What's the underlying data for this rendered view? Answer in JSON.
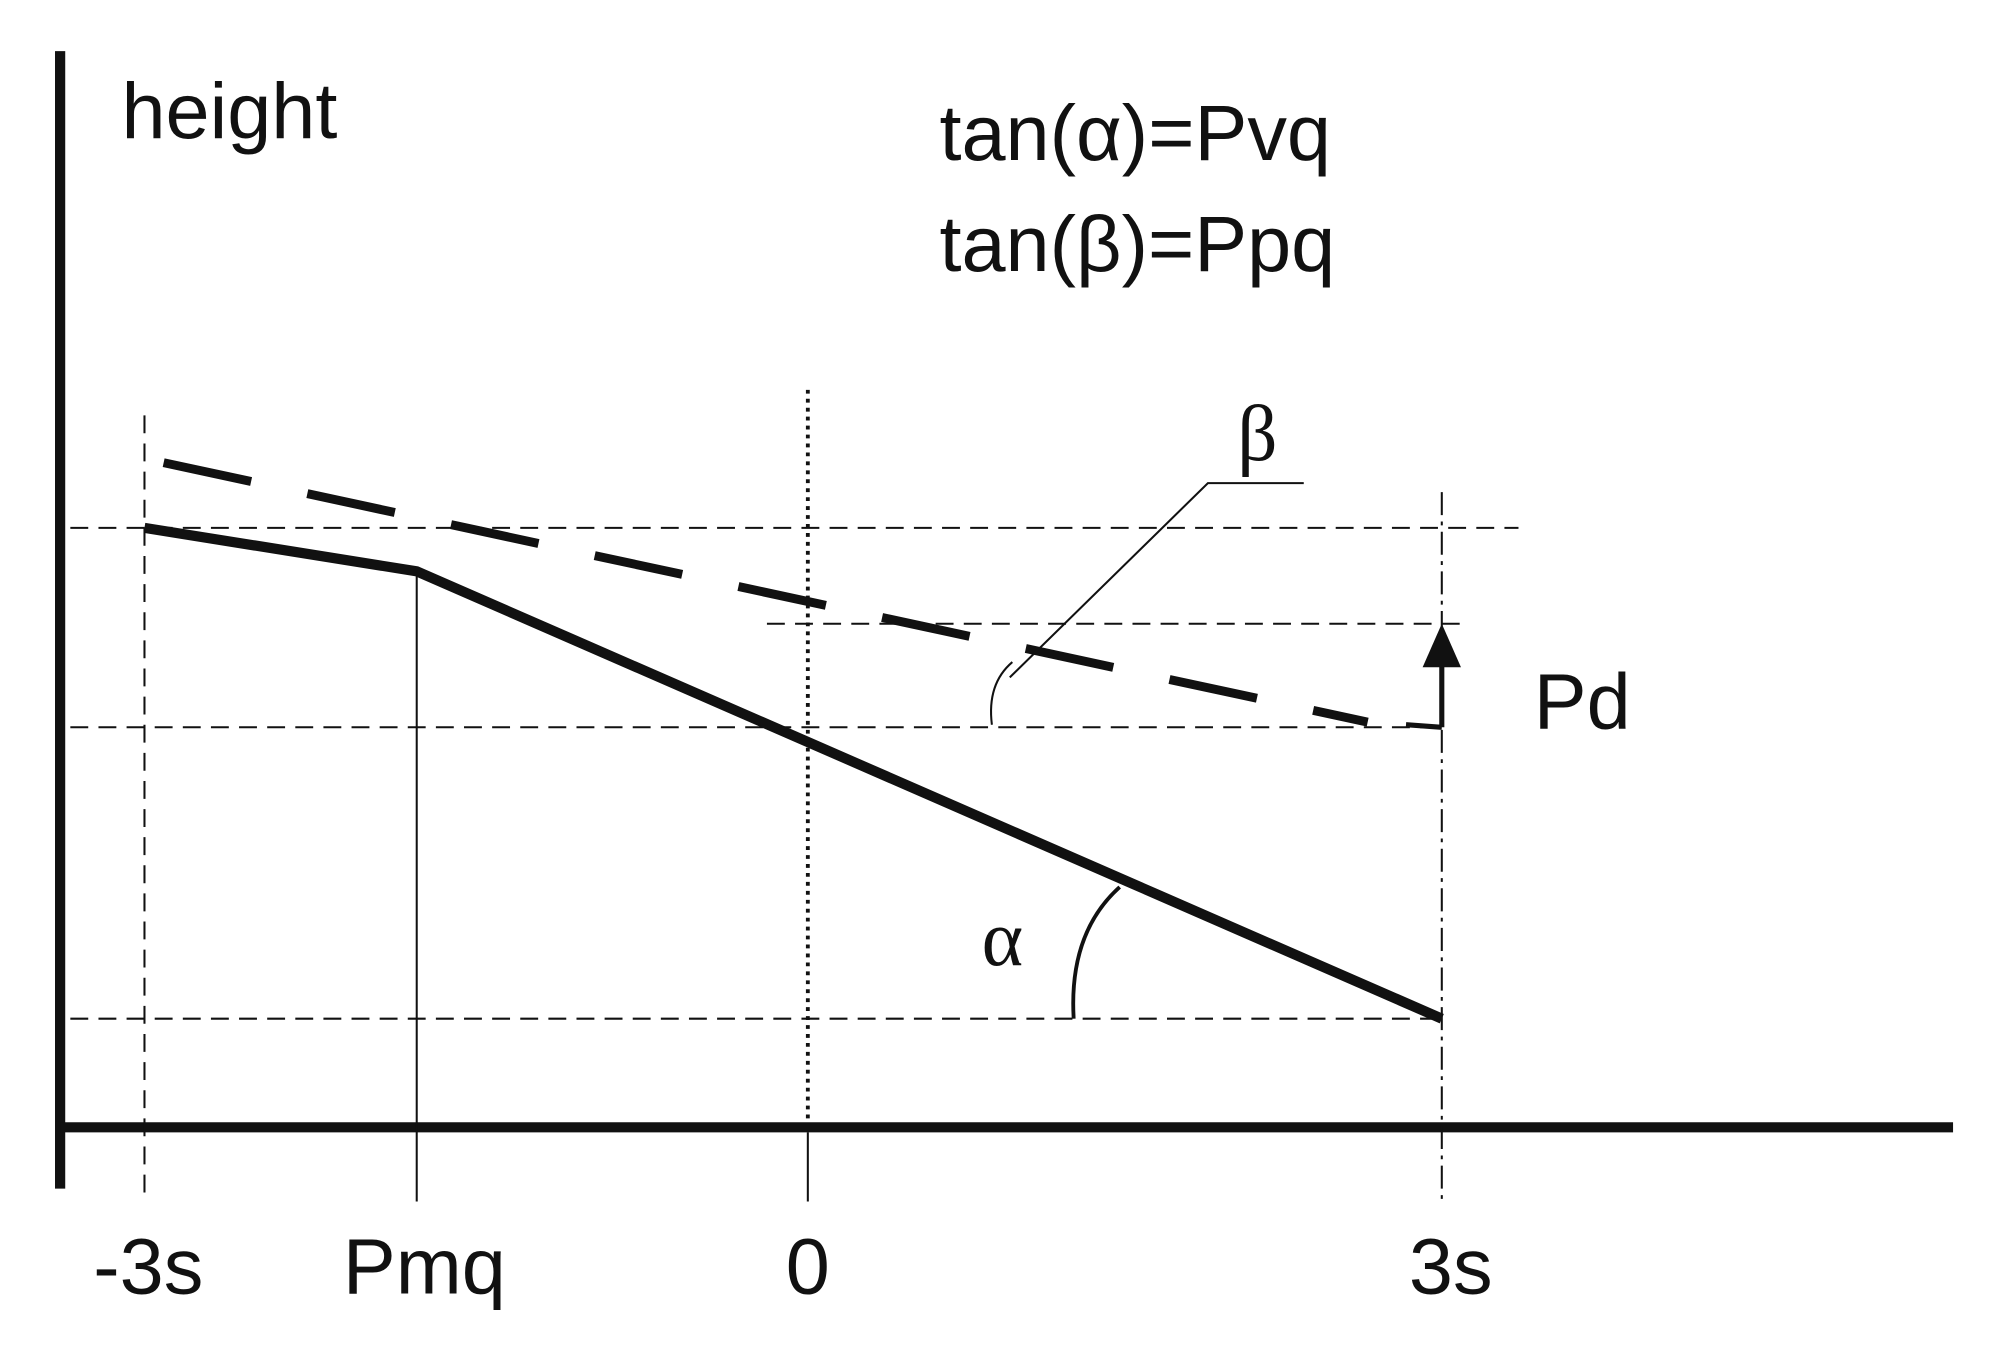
{
  "labels": {
    "y_axis": "height",
    "beta": "β",
    "alpha": "α",
    "pd": "Pd"
  },
  "formulas": [
    "tan(α)=Pvq",
    "tan(β)=Ppq"
  ],
  "x_labels": [
    "-3s",
    "Pmq",
    "0",
    "3s"
  ]
}
